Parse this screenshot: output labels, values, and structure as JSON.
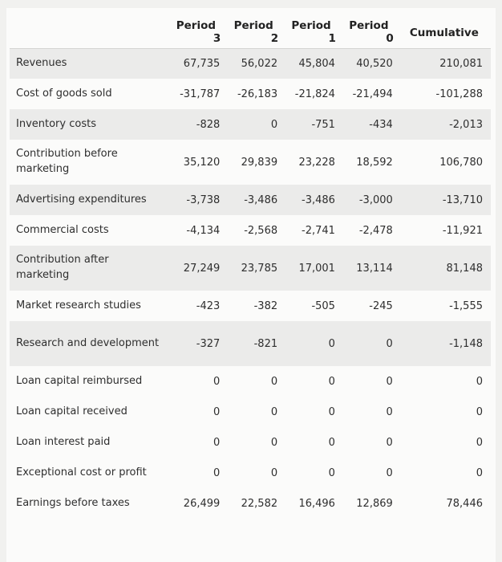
{
  "table": {
    "headers": [
      {
        "line1": "Period",
        "line2": "3"
      },
      {
        "line1": "Period",
        "line2": "2"
      },
      {
        "line1": "Period",
        "line2": "1"
      },
      {
        "line1": "Period",
        "line2": "0"
      },
      {
        "line1": "Cumulative",
        "line2": ""
      }
    ],
    "rows": [
      {
        "label": "Revenues",
        "values": [
          "67,735",
          "56,022",
          "45,804",
          "40,520",
          "210,081"
        ]
      },
      {
        "label": "Cost of goods sold",
        "values": [
          "-31,787",
          "-26,183",
          "-21,824",
          "-21,494",
          "-101,288"
        ]
      },
      {
        "label": "Inventory costs",
        "values": [
          "-828",
          "0",
          "-751",
          "-434",
          "-2,013"
        ]
      },
      {
        "label": "Contribution before marketing",
        "values": [
          "35,120",
          "29,839",
          "23,228",
          "18,592",
          "106,780"
        ]
      },
      {
        "label": "Advertising expenditures",
        "values": [
          "-3,738",
          "-3,486",
          "-3,486",
          "-3,000",
          "-13,710"
        ]
      },
      {
        "label": "Commercial costs",
        "values": [
          "-4,134",
          "-2,568",
          "-2,741",
          "-2,478",
          "-11,921"
        ]
      },
      {
        "label": "Contribution after marketing",
        "values": [
          "27,249",
          "23,785",
          "17,001",
          "13,114",
          "81,148"
        ]
      },
      {
        "label": "Market research studies",
        "values": [
          "-423",
          "-382",
          "-505",
          "-245",
          "-1,555"
        ]
      },
      {
        "label": "Research and development",
        "values": [
          "-327",
          "-821",
          "0",
          "0",
          "-1,148"
        ]
      },
      {
        "label": "Loan capital reimbursed",
        "values": [
          "0",
          "0",
          "0",
          "0",
          "0"
        ]
      },
      {
        "label": "Loan capital received",
        "values": [
          "0",
          "0",
          "0",
          "0",
          "0"
        ]
      },
      {
        "label": "Loan interest paid",
        "values": [
          "0",
          "0",
          "0",
          "0",
          "0"
        ]
      },
      {
        "label": "Exceptional cost or profit",
        "values": [
          "0",
          "0",
          "0",
          "0",
          "0"
        ]
      },
      {
        "label": "Earnings before taxes",
        "values": [
          "26,499",
          "22,582",
          "16,496",
          "12,869",
          "78,446"
        ]
      }
    ]
  }
}
